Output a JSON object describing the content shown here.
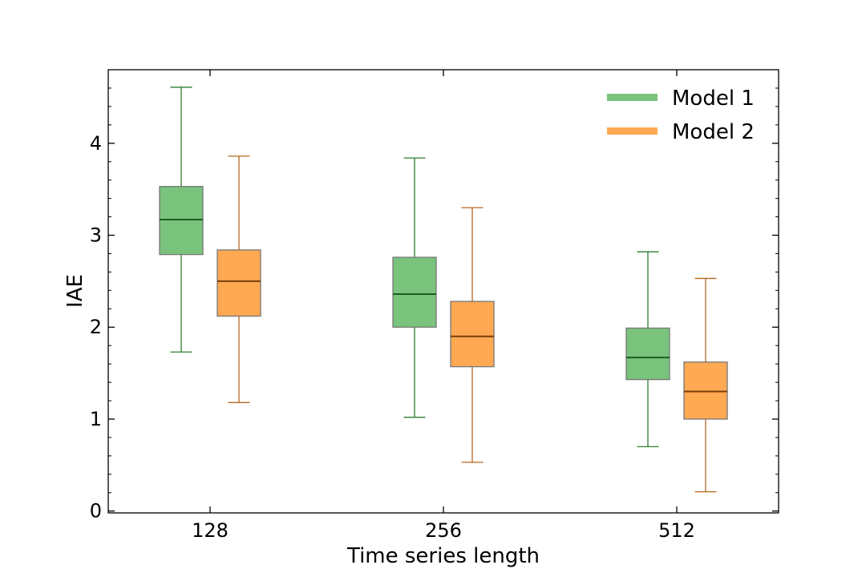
{
  "chart_data": {
    "type": "boxplot",
    "title": "",
    "xlabel": "Time series length",
    "ylabel": "IAE",
    "categories": [
      "128",
      "256",
      "512"
    ],
    "ylim": [
      -0.02,
      4.8
    ],
    "yticks": [
      "0",
      "1",
      "2",
      "3",
      "4"
    ],
    "legend_position": "top-right",
    "series": [
      {
        "name": "Model 1",
        "color": "#4caf50",
        "boxes": [
          {
            "category": "128",
            "whislo": 1.73,
            "q1": 2.79,
            "median": 3.17,
            "q3": 3.53,
            "whishi": 4.61
          },
          {
            "category": "256",
            "whislo": 1.02,
            "q1": 2.0,
            "median": 2.36,
            "q3": 2.76,
            "whishi": 3.84
          },
          {
            "category": "512",
            "whislo": 0.7,
            "q1": 1.43,
            "median": 1.67,
            "q3": 1.99,
            "whishi": 2.82
          }
        ]
      },
      {
        "name": "Model 2",
        "color": "#ff8c1a",
        "boxes": [
          {
            "category": "128",
            "whislo": 1.18,
            "q1": 2.12,
            "median": 2.5,
            "q3": 2.84,
            "whishi": 3.86
          },
          {
            "category": "256",
            "whislo": 0.53,
            "q1": 1.57,
            "median": 1.9,
            "q3": 2.28,
            "whishi": 3.3
          },
          {
            "category": "512",
            "whislo": 0.21,
            "q1": 1.0,
            "median": 1.3,
            "q3": 1.62,
            "whishi": 2.53
          }
        ]
      }
    ]
  }
}
